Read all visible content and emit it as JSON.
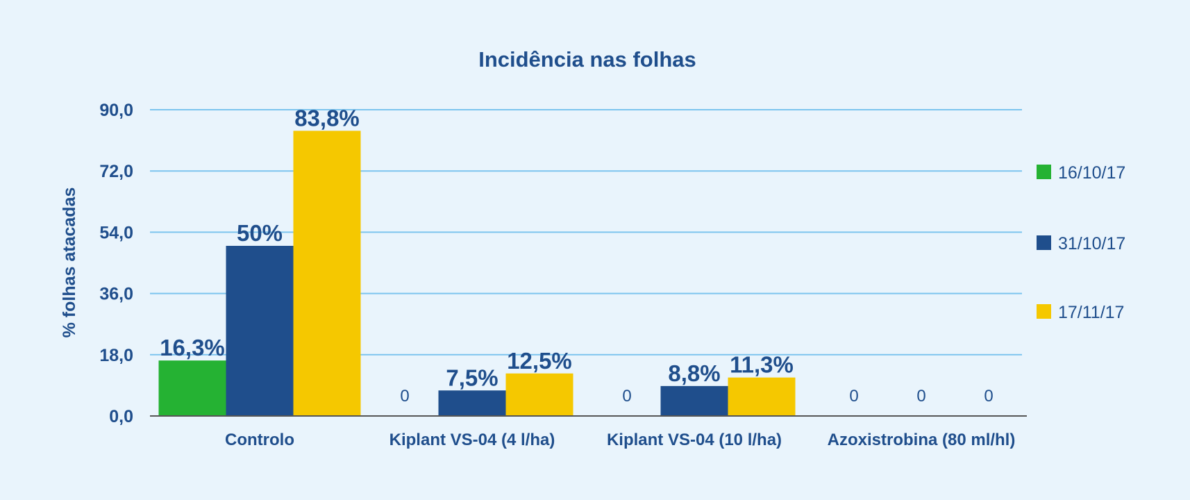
{
  "colors": {
    "background": "#e9f4fc",
    "text": "#1f4e8c",
    "gridline": "#7cc4ee",
    "axis": "#555555"
  },
  "chart_data": {
    "type": "bar",
    "title": "Incidência nas folhas",
    "ylabel": "% folhas atacadas",
    "xlabel": "",
    "ylim": [
      0,
      90
    ],
    "yticks": [
      0,
      18,
      36,
      54,
      72,
      90
    ],
    "ytick_labels": [
      "0,0",
      "18,0",
      "36,0",
      "54,0",
      "72,0",
      "90,0"
    ],
    "grid": true,
    "legend_position": "right",
    "categories": [
      "Controlo",
      "Kiplant VS-04 (4 l/ha)",
      "Kiplant VS-04 (10 l/ha)",
      "Azoxistrobina (80 ml/hl)"
    ],
    "series": [
      {
        "name": "16/10/17",
        "color": "#25b233",
        "values": [
          16.3,
          0,
          0,
          0
        ],
        "labels": [
          "16,3%",
          "0",
          "0",
          "0"
        ]
      },
      {
        "name": "31/10/17",
        "color": "#1f4e8c",
        "values": [
          50,
          7.5,
          8.8,
          0
        ],
        "labels": [
          "50%",
          "7,5%",
          "8,8%",
          "0"
        ]
      },
      {
        "name": "17/11/17",
        "color": "#f5c800",
        "values": [
          83.8,
          12.5,
          11.3,
          0
        ],
        "labels": [
          "83,8%",
          "12,5%",
          "11,3%",
          "0"
        ]
      }
    ]
  }
}
